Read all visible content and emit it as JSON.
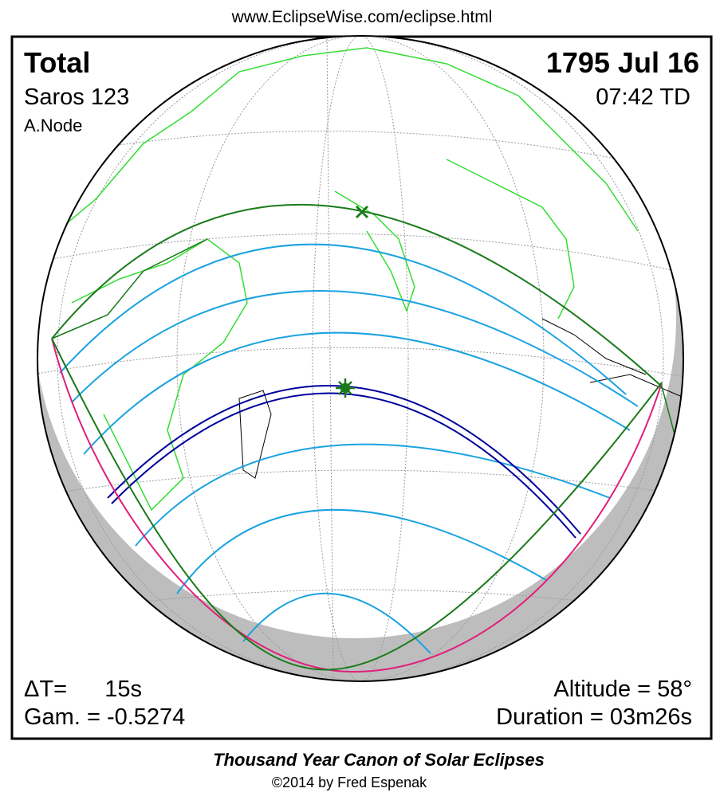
{
  "header": {
    "url": "www.EclipseWise.com/eclipse.html"
  },
  "eclipse": {
    "type": "Total",
    "date": "1795 Jul 16",
    "saros": "Saros 123",
    "time": "07:42 TD",
    "node": "A.Node",
    "delta_t_label": "ΔT=",
    "delta_t": "15s",
    "gamma": "Gam. = -0.5274",
    "altitude": "Altitude = 58°",
    "duration": "Duration = 03m26s"
  },
  "footer": {
    "title": "Thousand Year Canon of Solar Eclipses",
    "credit": "©2014 by Fred Espenak"
  }
}
